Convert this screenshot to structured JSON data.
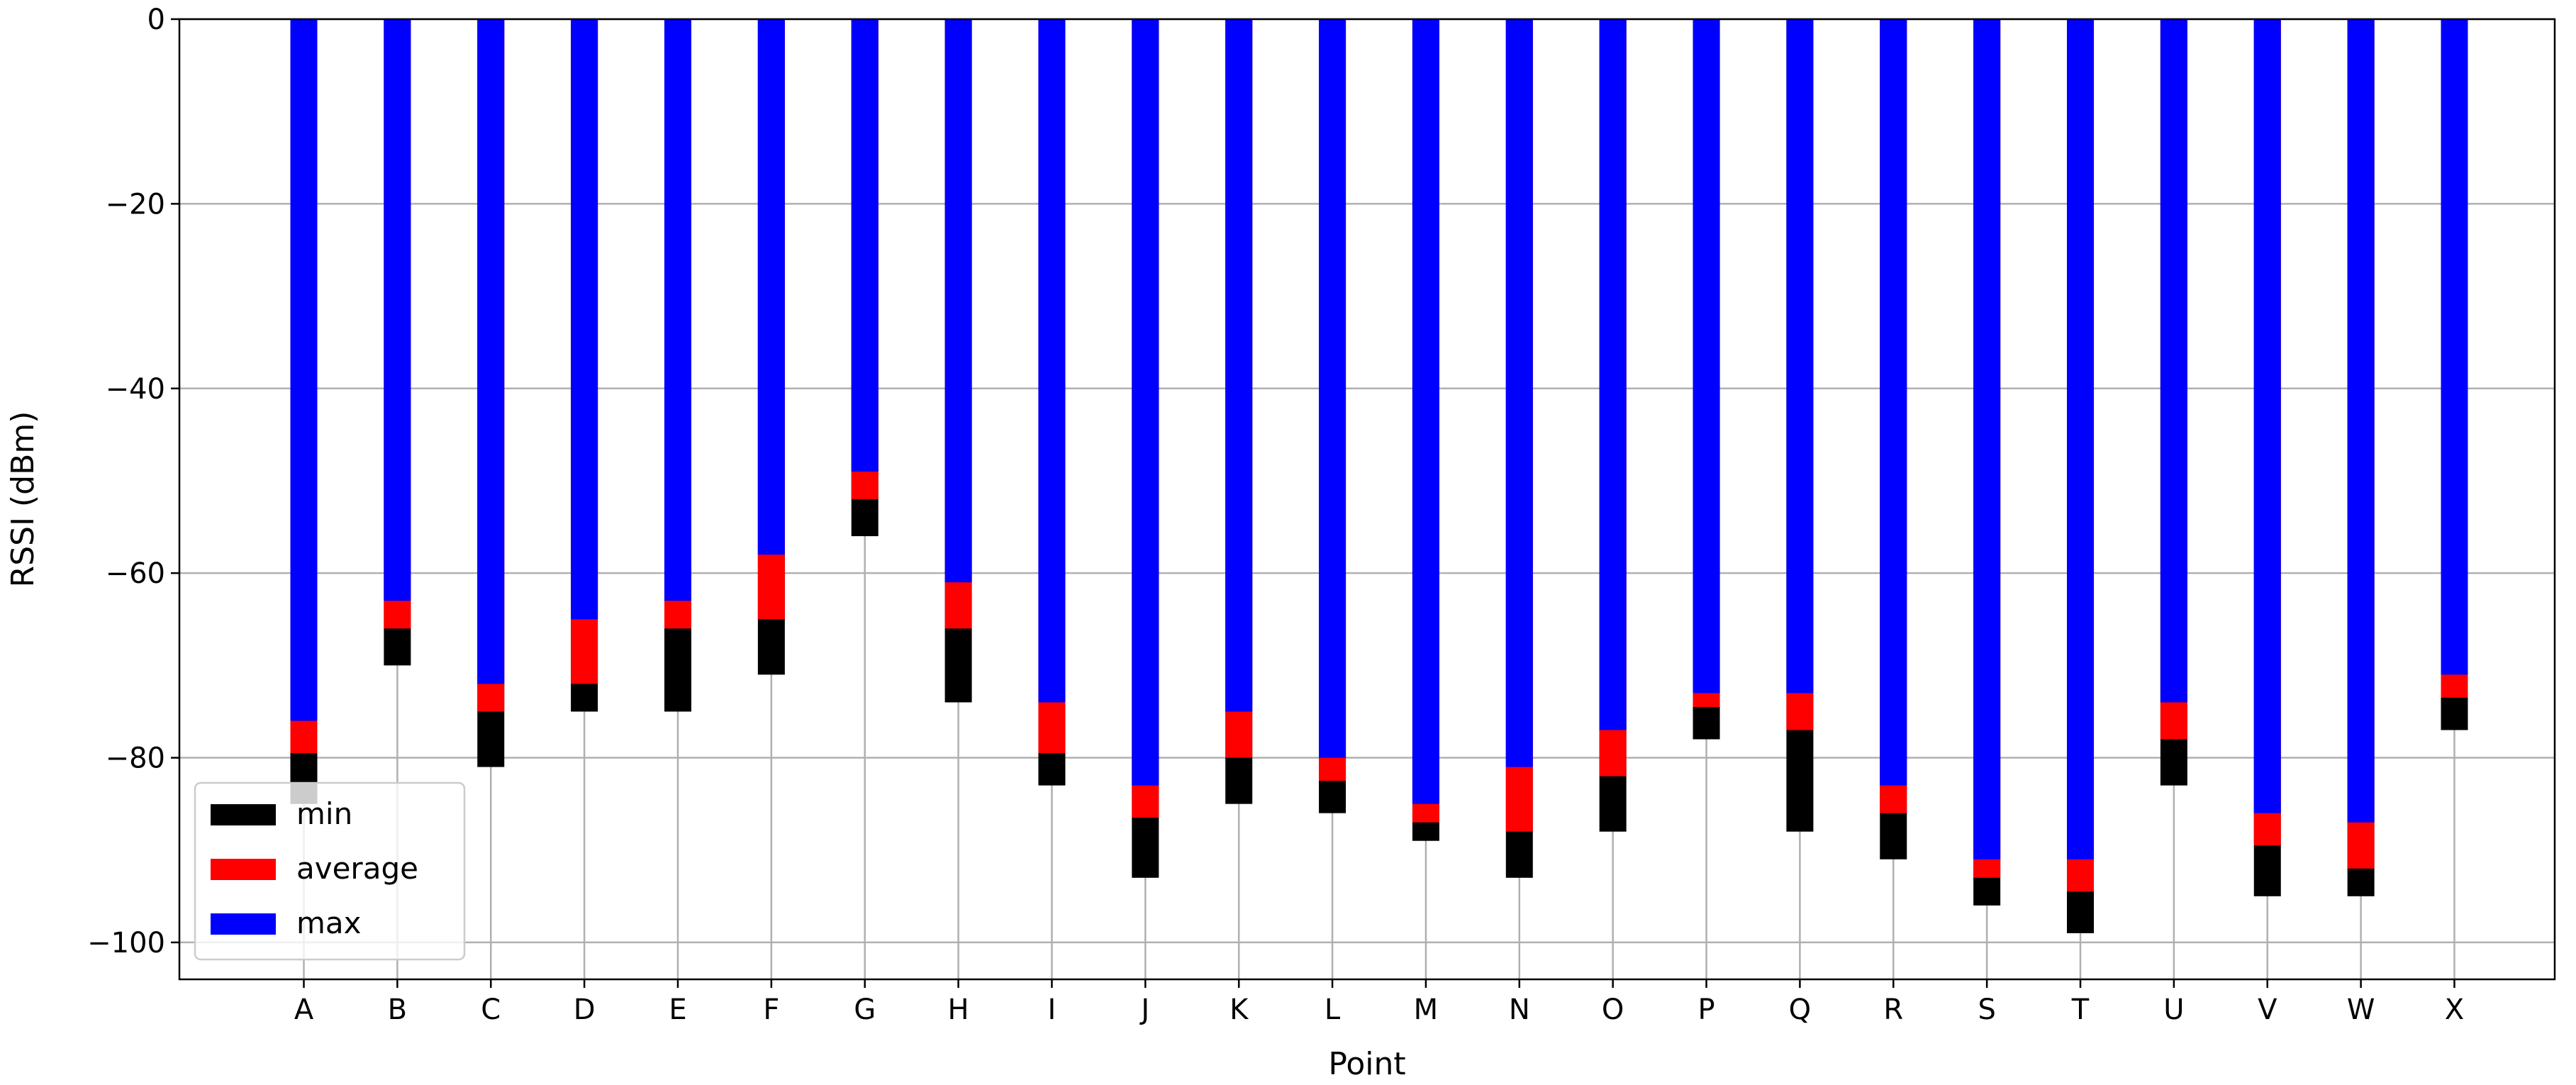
{
  "chart_data": {
    "type": "bar",
    "title": "",
    "xlabel": "Point",
    "ylabel": "RSSI (dBm)",
    "ylim": [
      -104,
      0
    ],
    "yticks": [
      0,
      -20,
      -40,
      -60,
      -80,
      -100
    ],
    "ytick_labels": [
      "0",
      "−20",
      "−40",
      "−60",
      "−80",
      "−100"
    ],
    "grid": true,
    "legend_position": "lower-left",
    "categories": [
      "A",
      "B",
      "C",
      "D",
      "E",
      "F",
      "G",
      "H",
      "I",
      "J",
      "K",
      "L",
      "M",
      "N",
      "O",
      "P",
      "Q",
      "R",
      "S",
      "T",
      "U",
      "V",
      "W",
      "X"
    ],
    "series": [
      {
        "name": "min",
        "color": "#000000",
        "values": [
          -85,
          -70,
          -81,
          -75,
          -75,
          -71,
          -56,
          -74,
          -83,
          -93,
          -85,
          -86,
          -89,
          -93,
          -88,
          -78,
          -88,
          -91,
          -96,
          -99,
          -83,
          -95,
          -95,
          -77
        ]
      },
      {
        "name": "average",
        "color": "#ff0000",
        "values": [
          -79.5,
          -66,
          -75,
          -72,
          -66,
          -65,
          -52,
          -66,
          -79.5,
          -86.5,
          -80,
          -82.5,
          -87,
          -88,
          -82,
          -74.5,
          -77,
          -86,
          -93,
          -94.5,
          -78,
          -89.5,
          -92,
          -73.5
        ]
      },
      {
        "name": "max",
        "color": "#0000ff",
        "values": [
          -76,
          -63,
          -72,
          -65,
          -63,
          -58,
          -49,
          -61,
          -74,
          -83,
          -75,
          -80,
          -85,
          -81,
          -77,
          -73,
          -73,
          -83,
          -91,
          -91,
          -74,
          -86,
          -87,
          -71
        ]
      }
    ]
  }
}
